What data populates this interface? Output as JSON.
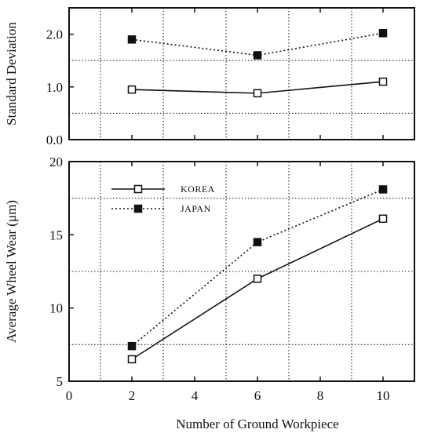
{
  "chart_data": [
    {
      "type": "line",
      "ylabel": "Standard Deviation",
      "xlabel": "",
      "x": [
        2,
        6,
        10
      ],
      "xlim": [
        0,
        11
      ],
      "ylim": [
        0.0,
        2.5
      ],
      "yticks": [
        0.0,
        1.0,
        2.0
      ],
      "ytick_labels": [
        "0.0",
        "1.0",
        "2.0"
      ],
      "grid": true,
      "series": [
        {
          "name": "KOREA",
          "values": [
            0.95,
            0.88,
            1.1
          ],
          "marker": "open-square",
          "line": "solid"
        },
        {
          "name": "JAPAN",
          "values": [
            1.9,
            1.6,
            2.02
          ],
          "marker": "filled-square",
          "line": "dotted"
        }
      ]
    },
    {
      "type": "line",
      "ylabel": "Average Wheel Wear (μm)",
      "xlabel": "Number of Ground Workpiece",
      "x": [
        2,
        6,
        10
      ],
      "xlim": [
        0,
        11
      ],
      "ylim": [
        5,
        20
      ],
      "xticks": [
        0,
        2,
        4,
        6,
        8,
        10
      ],
      "xtick_labels": [
        "0",
        "2",
        "4",
        "6",
        "8",
        "10"
      ],
      "yticks": [
        5,
        10,
        15,
        20
      ],
      "ytick_labels": [
        "5",
        "10",
        "15",
        "20"
      ],
      "grid": true,
      "legend_position": "top-left",
      "series": [
        {
          "name": "KOREA",
          "values": [
            6.5,
            12.0,
            16.1
          ],
          "marker": "open-square",
          "line": "solid"
        },
        {
          "name": "JAPAN",
          "values": [
            7.4,
            14.5,
            18.1
          ],
          "marker": "filled-square",
          "line": "dotted"
        }
      ]
    }
  ]
}
